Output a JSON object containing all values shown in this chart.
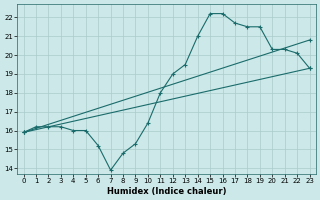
{
  "bg_color": "#cce8e8",
  "grid_color": "#aacccc",
  "line_color": "#1a6b6b",
  "xlabel": "Humidex (Indice chaleur)",
  "xlim": [
    -0.5,
    23.5
  ],
  "ylim": [
    13.7,
    22.7
  ],
  "yticks": [
    14,
    15,
    16,
    17,
    18,
    19,
    20,
    21,
    22
  ],
  "xticks": [
    0,
    1,
    2,
    3,
    4,
    5,
    6,
    7,
    8,
    9,
    10,
    11,
    12,
    13,
    14,
    15,
    16,
    17,
    18,
    19,
    20,
    21,
    22,
    23
  ],
  "series1_x": [
    0,
    1,
    2,
    3,
    4,
    5,
    6,
    7,
    8,
    9,
    10,
    11,
    12,
    13,
    14,
    15,
    16,
    17,
    18,
    19,
    20,
    21,
    22,
    23
  ],
  "series1_y": [
    15.9,
    16.2,
    16.2,
    16.2,
    16.0,
    16.0,
    15.2,
    13.9,
    14.8,
    15.3,
    16.4,
    18.0,
    19.0,
    19.5,
    21.0,
    22.2,
    22.2,
    21.7,
    21.5,
    21.5,
    20.3,
    20.3,
    20.1,
    19.3
  ],
  "series2_x": [
    0,
    23
  ],
  "series2_y": [
    15.9,
    19.3
  ],
  "series3_x": [
    0,
    23
  ],
  "series3_y": [
    15.9,
    20.8
  ]
}
